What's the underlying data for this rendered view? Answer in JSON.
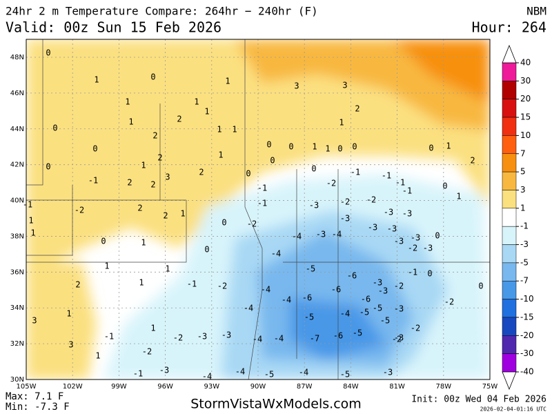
{
  "header": {
    "title": "24hr 2 m Temperature Compare: 264hr − 240hr (F)",
    "model": "NBM",
    "valid": "Valid: 00z Sun 15 Feb 2026",
    "hour": "Hour: 264"
  },
  "map": {
    "lat_labels": [
      "48N",
      "46N",
      "44N",
      "42N",
      "40N",
      "38N",
      "36N",
      "34N",
      "32N",
      "30N"
    ],
    "lon_labels": [
      "105W",
      "102W",
      "99W",
      "96W",
      "93W",
      "90W",
      "87W",
      "84W",
      "81W",
      "78W",
      "75W"
    ],
    "values": [
      0,
      1,
      0,
      1,
      1,
      2,
      1,
      1,
      1,
      1,
      1,
      3,
      3,
      2,
      1,
      0,
      0,
      2,
      1,
      0,
      0,
      1,
      1,
      0,
      0,
      0,
      1,
      2,
      2,
      3,
      2,
      2,
      0,
      0,
      0,
      -1,
      -1,
      -2,
      -1,
      -1,
      -1,
      -1,
      0,
      1,
      2,
      1,
      0,
      -1,
      -2,
      2,
      2,
      1,
      0,
      -1,
      -3,
      -2,
      -2,
      -3,
      -3,
      -3,
      1,
      1,
      0,
      1,
      -2,
      -4,
      -4,
      -3,
      -3,
      -3,
      -3,
      -3,
      -3,
      -2,
      0,
      0,
      -4,
      -5,
      -6,
      -3,
      -2,
      -1,
      0,
      1,
      1,
      2,
      1,
      -1,
      -2,
      -4,
      -6,
      -6,
      -6,
      -3,
      -5,
      -3,
      -2,
      0,
      -4,
      -4,
      -5,
      -4,
      -5,
      -5,
      -2,
      3,
      1,
      1,
      -1,
      -2,
      -3,
      -3,
      -4,
      -4,
      -7,
      -6,
      -5,
      -3,
      3,
      -2,
      1,
      -1,
      -3,
      -4,
      -4,
      -5,
      -4,
      -5,
      -3,
      -2
    ]
  },
  "colorbar": {
    "labels": [
      40,
      30,
      20,
      15,
      10,
      7,
      5,
      3,
      1,
      -1,
      -3,
      -5,
      -7,
      -10,
      -15,
      -20,
      -30,
      -40
    ],
    "colors": [
      "#ee1a9a",
      "#b00000",
      "#d81010",
      "#f03010",
      "#ff6010",
      "#f79010",
      "#f8b840",
      "#fbe080",
      "#ffffff",
      "#d8f4fb",
      "#a8d8f4",
      "#78b8ee",
      "#4898e8",
      "#2070e0",
      "#1848c0",
      "#5028b0",
      "#a000e0"
    ]
  },
  "footer": {
    "max": "Max: 7.1 F",
    "min": "Min: -7.3 F",
    "site": "StormVistaWxModels.com",
    "init": "Init: 00z Wed 04 Feb 2026",
    "stamp": "2026-02-04-01:16 UTC"
  }
}
